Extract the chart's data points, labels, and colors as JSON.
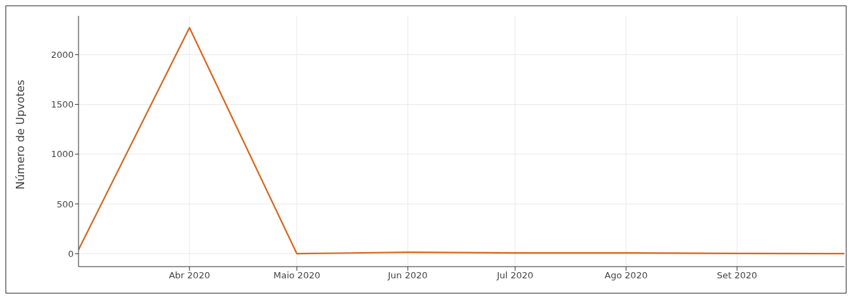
{
  "chart_data": {
    "type": "line",
    "ylabel": "Número de Upvotes",
    "x": [
      "2020-03",
      "2020-04",
      "2020-05",
      "2020-06",
      "2020-07",
      "2020-08",
      "2020-09",
      "2020-10"
    ],
    "series": [
      {
        "color": "#d9661f",
        "values": [
          40,
          2270,
          0,
          14,
          7,
          7,
          3,
          0
        ]
      }
    ],
    "xlim": [
      "2020-03",
      "2020-10"
    ],
    "xticks": [
      {
        "value": "2020-04",
        "label": "Abr 2020"
      },
      {
        "value": "2020-05",
        "label": "Maio 2020"
      },
      {
        "value": "2020-06",
        "label": "Jun 2020"
      },
      {
        "value": "2020-07",
        "label": "Jul 2020"
      },
      {
        "value": "2020-08",
        "label": "Ago 2020"
      },
      {
        "value": "2020-09",
        "label": "Set 2020"
      }
    ],
    "ylim": [
      -130,
      2390
    ],
    "yticks": [
      0,
      500,
      1000,
      1500,
      2000
    ],
    "grid": true,
    "marker": "none",
    "line_style": "solid"
  }
}
